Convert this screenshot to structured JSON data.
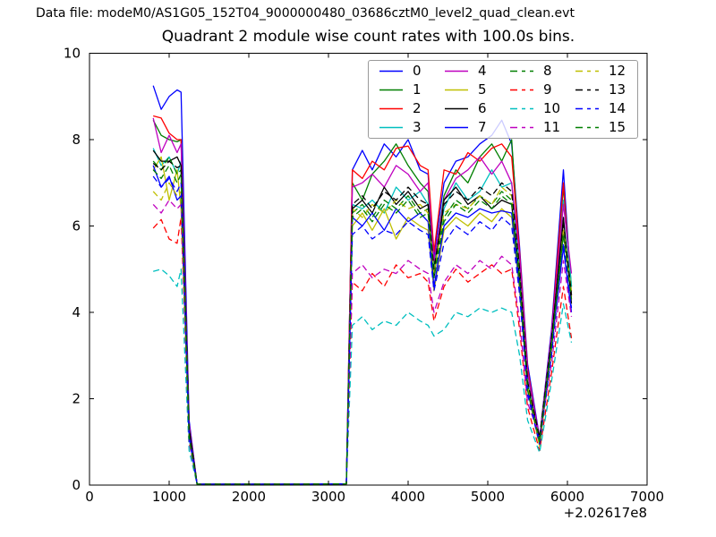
{
  "header": {
    "data_file": "Data file: modeM0/AS1G05_152T04_9000000480_03686cztM0_level2_quad_clean.evt"
  },
  "chart_data": {
    "type": "line",
    "title": "Quadrant 2 module wise count rates with 100.0s bins.",
    "xlabel": "",
    "ylabel": "",
    "xlim": [
      0,
      7000
    ],
    "ylim": [
      0,
      10
    ],
    "x_ticks": [
      0,
      1000,
      2000,
      3000,
      4000,
      5000,
      6000,
      7000
    ],
    "y_ticks": [
      0,
      2,
      4,
      6,
      8,
      10
    ],
    "x_offset_text": "+2.02617e8",
    "grid": false,
    "legend_position": "upper right inside, 4 columns, semi-transparent",
    "axis_color": "#000000",
    "x": [
      800,
      900,
      1000,
      1100,
      1150,
      1250,
      1350,
      2000,
      2700,
      3225,
      3300,
      3425,
      3550,
      3700,
      3850,
      4000,
      4150,
      4250,
      4325,
      4450,
      4600,
      4750,
      4900,
      5050,
      5175,
      5300,
      5400,
      5500,
      5650,
      5800,
      5950,
      6050
    ],
    "series": [
      {
        "name": "0",
        "color": "#0000ff",
        "dash": false,
        "values": [
          9.25,
          8.7,
          9.0,
          9.15,
          9.1,
          1.5,
          0.02,
          0.02,
          0.02,
          0.03,
          7.3,
          7.75,
          7.3,
          7.9,
          7.6,
          8.0,
          7.3,
          7.2,
          5.3,
          7.0,
          7.5,
          7.6,
          7.9,
          8.1,
          8.45,
          7.9,
          5.5,
          2.8,
          1.1,
          3.6,
          7.3,
          4.4
        ]
      },
      {
        "name": "1",
        "color": "#007f00",
        "dash": false,
        "values": [
          8.45,
          8.1,
          8.0,
          7.95,
          8.0,
          1.4,
          0.02,
          0.02,
          0.02,
          0.03,
          7.0,
          6.6,
          7.2,
          7.5,
          7.9,
          7.4,
          7.0,
          6.8,
          5.1,
          6.7,
          7.3,
          7.0,
          7.6,
          7.9,
          7.5,
          8.0,
          5.2,
          2.6,
          1.0,
          3.4,
          6.9,
          4.6
        ]
      },
      {
        "name": "2",
        "color": "#ff0000",
        "dash": false,
        "values": [
          8.55,
          8.5,
          8.15,
          8.0,
          8.0,
          1.4,
          0.02,
          0.02,
          0.02,
          0.03,
          7.3,
          7.1,
          7.5,
          7.3,
          7.8,
          7.85,
          7.4,
          7.3,
          5.4,
          7.3,
          7.2,
          7.7,
          7.5,
          7.8,
          7.9,
          7.6,
          5.4,
          2.7,
          1.05,
          3.5,
          7.0,
          4.3
        ]
      },
      {
        "name": "3",
        "color": "#00bfbf",
        "dash": false,
        "values": [
          7.8,
          7.4,
          7.6,
          7.2,
          7.5,
          1.3,
          0.02,
          0.02,
          0.02,
          0.03,
          6.5,
          6.4,
          6.6,
          6.3,
          6.9,
          6.6,
          6.8,
          6.5,
          5.0,
          6.4,
          7.0,
          6.6,
          6.8,
          7.3,
          6.9,
          7.0,
          4.9,
          2.4,
          0.95,
          3.3,
          6.6,
          4.6
        ]
      },
      {
        "name": "4",
        "color": "#bf00bf",
        "dash": false,
        "values": [
          8.5,
          7.7,
          8.1,
          7.7,
          7.9,
          1.4,
          0.02,
          0.02,
          0.02,
          0.03,
          6.9,
          7.0,
          7.2,
          6.9,
          7.4,
          7.2,
          6.8,
          7.0,
          5.2,
          6.6,
          7.1,
          7.3,
          7.6,
          7.2,
          7.5,
          7.0,
          5.3,
          2.6,
          1.1,
          3.5,
          6.5,
          4.9
        ]
      },
      {
        "name": "5",
        "color": "#bfbf00",
        "dash": false,
        "values": [
          7.3,
          7.6,
          6.6,
          7.3,
          6.4,
          1.2,
          0.02,
          0.02,
          0.02,
          0.03,
          6.0,
          6.3,
          5.9,
          6.4,
          5.7,
          6.2,
          6.0,
          5.9,
          4.5,
          5.9,
          6.2,
          6.0,
          6.3,
          6.1,
          6.4,
          6.2,
          4.5,
          2.2,
          0.9,
          3.1,
          5.9,
          4.4
        ]
      },
      {
        "name": "6",
        "color": "#000000",
        "dash": false,
        "values": [
          7.75,
          7.5,
          7.5,
          7.6,
          7.4,
          1.3,
          0.02,
          0.02,
          0.02,
          0.03,
          6.4,
          6.6,
          6.3,
          6.9,
          6.5,
          6.8,
          6.4,
          6.5,
          4.8,
          6.6,
          6.9,
          6.5,
          6.7,
          6.4,
          6.6,
          6.5,
          4.8,
          2.3,
          1.0,
          3.3,
          6.2,
          4.2
        ]
      },
      {
        "name": "7",
        "color": "#0000ff",
        "dash": false,
        "values": [
          7.4,
          6.9,
          7.15,
          6.6,
          6.7,
          1.2,
          0.02,
          0.02,
          0.02,
          0.03,
          6.2,
          6.0,
          6.3,
          5.9,
          6.4,
          6.1,
          6.3,
          6.1,
          4.6,
          6.0,
          6.3,
          6.2,
          6.4,
          6.3,
          6.35,
          6.3,
          4.6,
          2.2,
          1.0,
          3.2,
          5.5,
          4.0
        ]
      },
      {
        "name": "8",
        "color": "#007f00",
        "dash": true,
        "values": [
          7.5,
          7.3,
          7.6,
          7.2,
          7.3,
          1.2,
          0.02,
          0.02,
          0.02,
          0.03,
          6.3,
          6.5,
          6.2,
          6.6,
          6.4,
          6.7,
          6.3,
          6.4,
          4.9,
          6.2,
          6.6,
          6.4,
          6.7,
          6.5,
          6.8,
          6.6,
          4.9,
          2.3,
          1.05,
          3.3,
          5.8,
          4.5
        ]
      },
      {
        "name": "9",
        "color": "#ff0000",
        "dash": true,
        "values": [
          5.95,
          6.15,
          5.7,
          5.6,
          6.2,
          1.0,
          0.02,
          0.02,
          0.02,
          0.02,
          4.7,
          4.5,
          4.9,
          4.6,
          5.1,
          4.8,
          4.9,
          4.7,
          3.8,
          4.6,
          5.0,
          4.7,
          4.9,
          5.1,
          4.9,
          5.0,
          3.6,
          1.8,
          0.8,
          2.6,
          4.6,
          3.4
        ]
      },
      {
        "name": "10",
        "color": "#00bfbf",
        "dash": true,
        "values": [
          4.95,
          5.0,
          4.85,
          4.6,
          5.0,
          0.8,
          0.02,
          0.02,
          0.02,
          0.02,
          3.7,
          3.9,
          3.6,
          3.8,
          3.7,
          4.0,
          3.8,
          3.7,
          3.45,
          3.6,
          4.0,
          3.9,
          4.1,
          4.0,
          4.1,
          4.0,
          3.0,
          1.5,
          0.75,
          2.4,
          4.2,
          3.3
        ]
      },
      {
        "name": "11",
        "color": "#bf00bf",
        "dash": true,
        "values": [
          6.5,
          6.3,
          6.6,
          6.4,
          6.5,
          1.0,
          0.02,
          0.02,
          0.02,
          0.02,
          4.9,
          5.1,
          4.8,
          5.0,
          4.9,
          5.2,
          5.0,
          4.9,
          4.0,
          4.7,
          5.1,
          4.9,
          5.2,
          5.0,
          5.3,
          5.1,
          3.8,
          1.9,
          1.15,
          2.8,
          5.2,
          3.9
        ]
      },
      {
        "name": "12",
        "color": "#bfbf00",
        "dash": true,
        "values": [
          6.8,
          6.6,
          7.0,
          6.7,
          6.8,
          1.1,
          0.02,
          0.02,
          0.02,
          0.03,
          6.4,
          6.2,
          6.5,
          6.3,
          6.6,
          6.4,
          6.5,
          6.3,
          4.9,
          6.3,
          6.5,
          6.4,
          6.7,
          6.5,
          6.9,
          6.7,
          4.8,
          2.3,
          1.0,
          3.2,
          5.9,
          4.5
        ]
      },
      {
        "name": "13",
        "color": "#000000",
        "dash": true,
        "values": [
          7.45,
          7.3,
          7.5,
          7.35,
          7.4,
          1.3,
          0.02,
          0.02,
          0.02,
          0.03,
          6.5,
          6.7,
          6.4,
          6.8,
          6.6,
          6.9,
          6.6,
          6.5,
          5.0,
          6.5,
          6.8,
          6.6,
          6.9,
          6.7,
          7.0,
          6.8,
          5.0,
          2.4,
          1.1,
          3.4,
          6.1,
          4.4
        ]
      },
      {
        "name": "14",
        "color": "#0000ff",
        "dash": true,
        "values": [
          7.15,
          6.9,
          7.1,
          6.8,
          7.0,
          1.1,
          0.02,
          0.02,
          0.02,
          0.03,
          5.8,
          6.0,
          5.7,
          5.9,
          5.8,
          6.1,
          5.9,
          5.8,
          4.5,
          5.6,
          6.0,
          5.8,
          6.1,
          5.9,
          6.2,
          6.0,
          4.4,
          2.1,
          0.95,
          3.0,
          5.6,
          4.1
        ]
      },
      {
        "name": "15",
        "color": "#007f00",
        "dash": true,
        "values": [
          7.3,
          7.1,
          7.4,
          7.0,
          7.2,
          1.1,
          0.02,
          0.02,
          0.02,
          0.03,
          6.2,
          6.4,
          6.1,
          6.5,
          6.3,
          6.6,
          6.2,
          6.3,
          4.8,
          6.1,
          6.5,
          6.3,
          6.6,
          6.4,
          6.7,
          6.5,
          4.7,
          2.2,
          1.0,
          3.2,
          5.8,
          4.3
        ]
      }
    ]
  }
}
